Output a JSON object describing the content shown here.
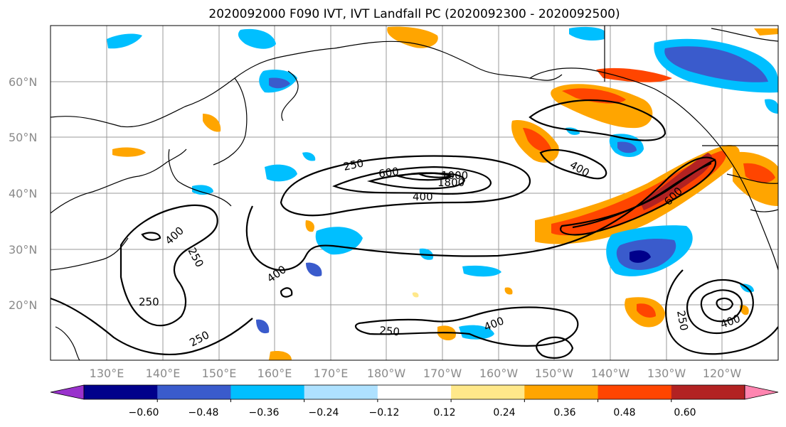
{
  "title": "2020092000 F090 IVT, IVT Landfall PC (2020092300 - 2020092500)",
  "map": {
    "lat_ticks": [
      "60°N",
      "50°N",
      "40°N",
      "30°N",
      "20°N"
    ],
    "lon_ticks": [
      "130°E",
      "140°E",
      "150°E",
      "160°E",
      "170°E",
      "180°W",
      "170°W",
      "160°W",
      "150°W",
      "140°W",
      "130°W",
      "120°W"
    ],
    "contour_labels": [
      "250",
      "600",
      "1000",
      "1800",
      "400",
      "400",
      "400",
      "250",
      "250",
      "250",
      "400",
      "250",
      "400",
      "600",
      "250",
      "400"
    ],
    "contour_color": "#000000",
    "grid": true
  },
  "colorbar": {
    "ticks": [
      "−0.60",
      "−0.48",
      "−0.36",
      "−0.24",
      "−0.12",
      "0.12",
      "0.24",
      "0.36",
      "0.48",
      "0.60"
    ],
    "colors": [
      "#9932cc",
      "#00008b",
      "#3a5bcc",
      "#00bfff",
      "#aee1ff",
      "#ffffff",
      "#ffe88a",
      "#ffa500",
      "#ff4500",
      "#b22222",
      "#ff85b0"
    ],
    "extend": "both"
  }
}
